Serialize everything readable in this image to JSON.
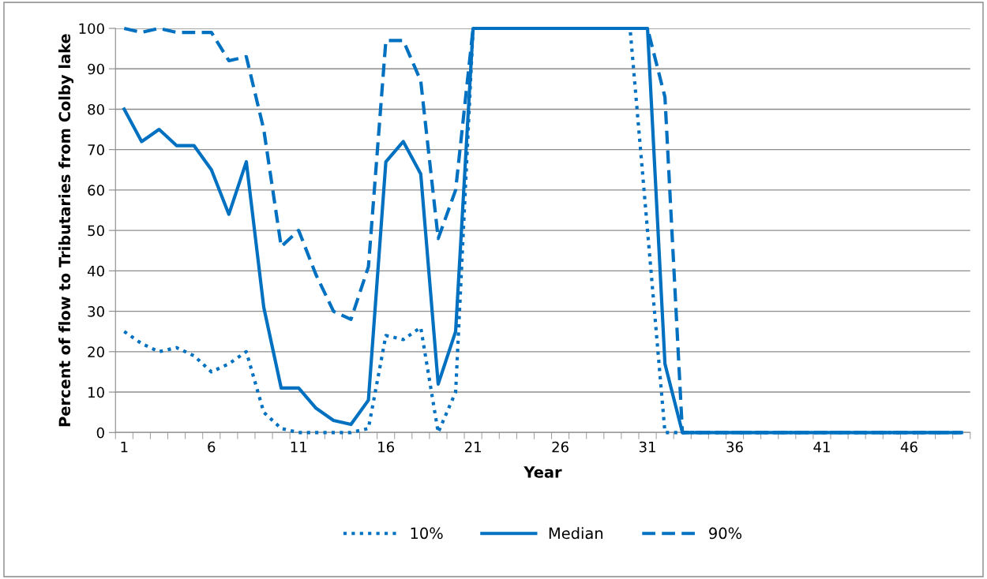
{
  "chart_data": {
    "type": "line",
    "xlabel": "Year",
    "ylabel": "Percent of flow to Tributaries from Colby lake",
    "categories": [
      "1",
      null,
      null,
      null,
      null,
      "6",
      null,
      null,
      null,
      null,
      "11",
      null,
      null,
      null,
      null,
      "16",
      null,
      null,
      null,
      null,
      "21",
      null,
      null,
      null,
      null,
      "26",
      null,
      null,
      null,
      null,
      "31",
      null,
      null,
      null,
      null,
      "36",
      null,
      null,
      null,
      null,
      "41",
      null,
      null,
      null,
      null,
      "46",
      null,
      null,
      null
    ],
    "series": [
      {
        "name": "10%",
        "color": "#0070c0",
        "line_style": "dotted",
        "values": [
          25,
          22,
          20,
          21,
          19,
          15,
          17,
          20,
          5,
          1,
          0,
          0,
          0,
          0,
          1,
          24,
          23,
          26,
          0,
          10,
          100,
          100,
          100,
          100,
          100,
          100,
          100,
          100,
          100,
          100,
          50,
          0,
          0,
          0,
          0,
          0,
          0,
          0,
          0,
          0,
          0,
          0,
          0,
          0,
          0,
          0,
          0,
          0,
          0
        ]
      },
      {
        "name": "Median",
        "color": "#0070c0",
        "line_style": "solid",
        "values": [
          80,
          72,
          75,
          71,
          71,
          65,
          54,
          67,
          31,
          11,
          11,
          6,
          3,
          2,
          8,
          67,
          72,
          64,
          12,
          25,
          100,
          100,
          100,
          100,
          100,
          100,
          100,
          100,
          100,
          100,
          100,
          17,
          0,
          0,
          0,
          0,
          0,
          0,
          0,
          0,
          0,
          0,
          0,
          0,
          0,
          0,
          0,
          0,
          0
        ]
      },
      {
        "name": "90%",
        "color": "#0070c0",
        "line_style": "dashed",
        "values": [
          100,
          99,
          100,
          99,
          99,
          99,
          92,
          93,
          75,
          46,
          50,
          39,
          30,
          28,
          41,
          97,
          97,
          87,
          48,
          60,
          100,
          100,
          100,
          100,
          100,
          100,
          100,
          100,
          100,
          100,
          100,
          83,
          0,
          0,
          0,
          0,
          0,
          0,
          0,
          0,
          0,
          0,
          0,
          0,
          0,
          0,
          0,
          0,
          0
        ]
      }
    ],
    "ylim": [
      0,
      100
    ],
    "yticks": [
      0,
      10,
      20,
      30,
      40,
      50,
      60,
      70,
      80,
      90,
      100
    ],
    "grid": "y",
    "legend": "bottom",
    "marker": "none"
  }
}
